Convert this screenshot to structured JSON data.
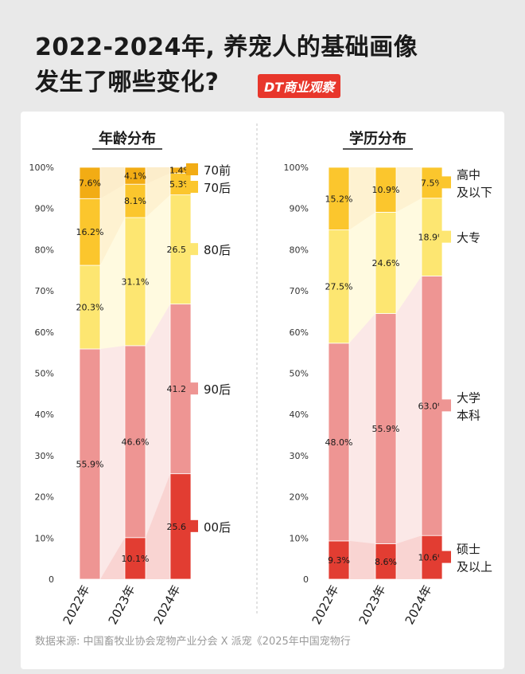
{
  "title_line1": "2022-2024年, 养宠人的基础画像",
  "title_line2": "发生了哪些变化?",
  "logo_text": "DT商业观察",
  "source": "数据来源: 中国畜牧业协会宠物产业分会 X 派宠《2025年中国宠物行",
  "chart_data": [
    {
      "type": "bar",
      "title": "年龄分布",
      "categories": [
        "2022年",
        "2023年",
        "2024年"
      ],
      "ylim": [
        0,
        100
      ],
      "yticks": [
        "0",
        "10%",
        "20%",
        "30%",
        "40%",
        "50%",
        "60%",
        "70%",
        "80%",
        "90%",
        "100%"
      ],
      "series": [
        {
          "name": "00后",
          "color": "#e23d32",
          "values": [
            0,
            10.1,
            25.6
          ],
          "labels": [
            "",
            "10.1%",
            "25.6%"
          ]
        },
        {
          "name": "90后",
          "color": "#ee9593",
          "values": [
            55.9,
            46.6,
            41.2
          ],
          "labels": [
            "55.9%",
            "46.6%",
            "41.2%"
          ]
        },
        {
          "name": "80后",
          "color": "#fde671",
          "values": [
            20.3,
            31.1,
            26.5
          ],
          "labels": [
            "20.3%",
            "31.1%",
            "26.5%"
          ]
        },
        {
          "name": "70后",
          "color": "#fbc62d",
          "values": [
            16.2,
            8.1,
            5.3
          ],
          "labels": [
            "16.2%",
            "8.1%",
            "5.3%"
          ]
        },
        {
          "name": "70前",
          "color": "#f2ac14",
          "values": [
            7.6,
            4.1,
            1.4
          ],
          "labels": [
            "7.6%",
            "4.1%",
            "1.4%"
          ]
        }
      ]
    },
    {
      "type": "bar",
      "title": "学历分布",
      "categories": [
        "2022年",
        "2023年",
        "2024年"
      ],
      "ylim": [
        0,
        100
      ],
      "yticks": [
        "0",
        "10%",
        "20%",
        "30%",
        "40%",
        "50%",
        "60%",
        "70%",
        "80%",
        "90%",
        "100%"
      ],
      "series": [
        {
          "name": "硕士及以上",
          "legend_lines": [
            "硕士",
            "及以上"
          ],
          "color": "#e23d32",
          "values": [
            9.3,
            8.6,
            10.6
          ],
          "labels": [
            "9.3%",
            "8.6%",
            "10.6%"
          ]
        },
        {
          "name": "大学本科",
          "legend_lines": [
            "大学",
            "本科"
          ],
          "color": "#ee9593",
          "values": [
            48.0,
            55.9,
            63.0
          ],
          "labels": [
            "48.0%",
            "55.9%",
            "63.0%"
          ]
        },
        {
          "name": "大专",
          "legend_lines": [
            "大专"
          ],
          "color": "#fde671",
          "values": [
            27.5,
            24.6,
            18.9
          ],
          "labels": [
            "27.5%",
            "24.6%",
            "18.9%"
          ]
        },
        {
          "name": "高中及以下",
          "legend_lines": [
            "高中",
            "及以下"
          ],
          "color": "#fbc62d",
          "values": [
            15.2,
            10.9,
            7.5
          ],
          "labels": [
            "15.2%",
            "10.9%",
            "7.5%"
          ]
        }
      ]
    }
  ]
}
